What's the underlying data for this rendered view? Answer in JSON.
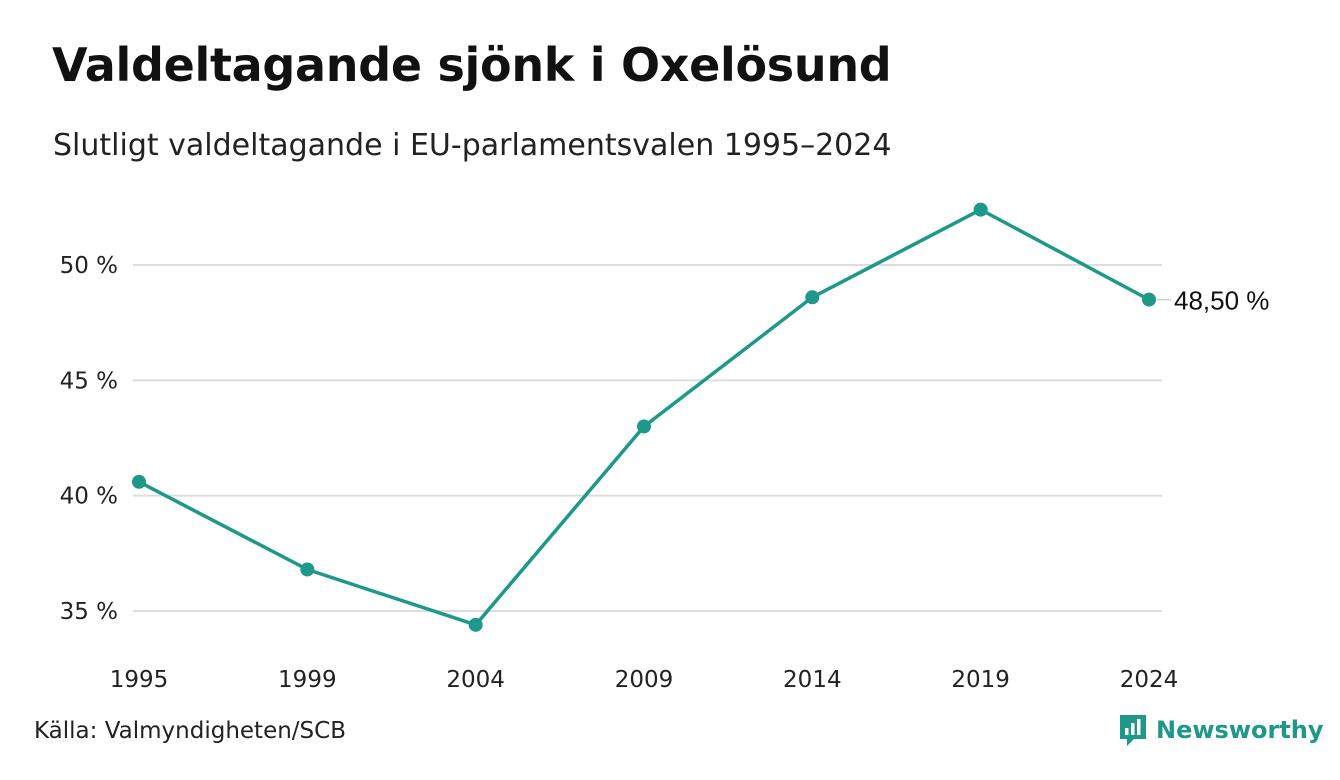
{
  "title": "Valdeltagande sjönk i Oxelösund",
  "subtitle": "Slutligt valdeltagande i EU-parlamentsvalen 1995–2024",
  "source": "Källa: Valmyndigheten/SCB",
  "brand": {
    "name": "Newsworthy",
    "icon": "newsworthy-logo-icon",
    "color": "#1d9889"
  },
  "colors": {
    "line": "#1d9889",
    "grid": "#dddddd"
  },
  "chart_data": {
    "type": "line",
    "title": "Valdeltagande sjönk i Oxelösund",
    "subtitle": "Slutligt valdeltagande i EU-parlamentsvalen 1995–2024",
    "xlabel": "",
    "ylabel": "",
    "x": [
      "1995",
      "1999",
      "2004",
      "2009",
      "2014",
      "2019",
      "2024"
    ],
    "series": [
      {
        "values": [
          40.6,
          36.8,
          34.4,
          43.0,
          48.6,
          52.4,
          48.5
        ]
      }
    ],
    "yticks": [
      35,
      40,
      45,
      50
    ],
    "ytick_labels": [
      "35 %",
      "40 %",
      "45 %",
      "50 %"
    ],
    "ylim": [
      33.5,
      53.5
    ],
    "grid": true,
    "legend": "none",
    "end_label": "48,50 %"
  }
}
